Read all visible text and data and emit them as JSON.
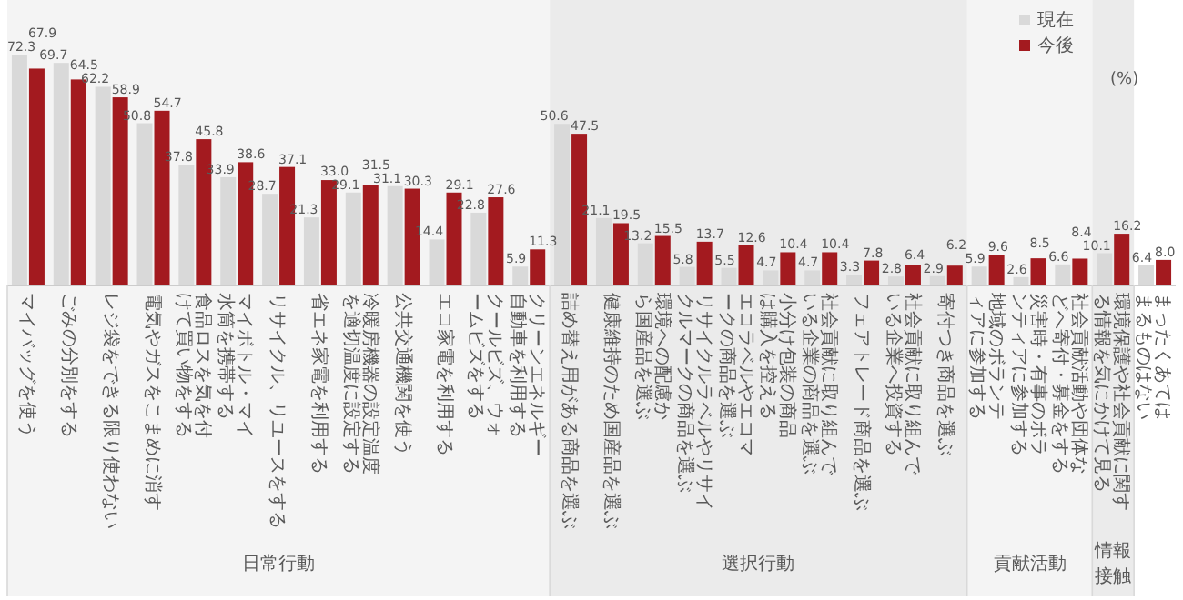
{
  "chart_data": {
    "type": "bar",
    "categories": [
      "マイバッグを使う",
      "ごみの分別をする",
      "レジ袋をできる限り使わない",
      "電気やガスをこまめに消す",
      "食品ロスを気を付けて買い物をする",
      "マイボトル・マイ水筒を携帯する",
      "リサイクル、リユースをする",
      "省エネ家電を利用する",
      "冷暖房機器の設定温度を適切温度に設定する",
      "公共交通機関を使う",
      "エコ家電を利用する",
      "クールビズ、ウォームビズをする",
      "クリーンエネルギー自動車を利用する",
      "詰め替え用がある商品を選ぶ",
      "健康維持のため国産品を選ぶ",
      "環境への配慮から国産品を選ぶ",
      "リサイクルラベルやリサイクルマークの商品を選ぶ",
      "エコラベルやエコマークの商品を選ぶ",
      "小分け包装の商品は購入を控える",
      "社会貢献に取り組んでいる企業の商品を選ぶ",
      "フェアトレード商品を選ぶ",
      "社会貢献に取り組んでいる企業へ投資する",
      "寄付つき商品を選ぶ",
      "地域のボランティアに参加する",
      "災害時・有事のボランティアに参加する",
      "社会貢献活動や団体などへ寄付・募金をする",
      "環境保護や社会貢献に関する情報を気にかけて見る",
      "まったくあてはまるものはない"
    ],
    "series": [
      {
        "name": "現在",
        "color": "#d9d9d9",
        "values": [
          72.3,
          69.7,
          62.2,
          50.8,
          37.8,
          33.9,
          28.7,
          21.3,
          29.1,
          31.1,
          14.4,
          22.8,
          5.9,
          50.6,
          21.1,
          13.2,
          5.8,
          5.5,
          4.7,
          4.7,
          3.3,
          2.8,
          2.9,
          5.9,
          2.6,
          6.6,
          10.1,
          6.4
        ],
        "value_labels": [
          "72.3",
          "69.7",
          "62.2",
          "50.8",
          "37.8",
          "33.9",
          "28.7",
          "21.3",
          "29.1",
          "31.1",
          "14.4",
          "22.8",
          "5.9",
          "50.6",
          "21.1",
          "13.2",
          "5.8",
          "5.5",
          "4.7",
          "4.7",
          "3.3",
          "2.8",
          "2.9",
          "5.9",
          "2.6",
          "6.6",
          "10.1",
          "6.4"
        ]
      },
      {
        "name": "今後",
        "color": "#a31a1f",
        "values": [
          67.9,
          64.5,
          58.9,
          54.7,
          45.8,
          38.6,
          37.1,
          33.0,
          31.5,
          30.3,
          29.1,
          27.6,
          11.3,
          47.5,
          19.5,
          15.5,
          13.7,
          12.6,
          10.4,
          10.4,
          7.8,
          6.4,
          6.2,
          9.6,
          8.5,
          8.4,
          16.2,
          8.0
        ],
        "value_labels": [
          "67.9",
          "64.5",
          "58.9",
          "54.7",
          "45.8",
          "38.6",
          "37.1",
          "33.0",
          "31.5",
          "30.3",
          "29.1",
          "27.6",
          "11.3",
          "47.5",
          "19.5",
          "15.5",
          "13.7",
          "12.6",
          "10.4",
          "10.4",
          "7.8",
          "6.4",
          "6.2",
          "9.6",
          "8.5",
          "8.4",
          "16.2",
          "8.0"
        ]
      }
    ],
    "legend": "top right",
    "bands": [
      {
        "axis": "x",
        "from": "マイバッグを使う",
        "to": "クリーンエネルギー自動車を利用する",
        "label": "日常行動",
        "color": "#f4f4f4"
      },
      {
        "axis": "x",
        "from": "詰め替え用がある商品を選ぶ",
        "to": "寄付つき商品を選ぶ",
        "label": "選択行動",
        "color": "#ebebeb"
      },
      {
        "axis": "x",
        "from": "地域のボランティアに参加する",
        "to": "社会貢献活動や団体などへ寄付・募金をする",
        "label": "貢献活動",
        "color": "#f4f4f4"
      },
      {
        "axis": "x",
        "from": "環境保護や社会貢献に関する情報を気にかけて見る",
        "to": "環境保護や社会貢献に関する情報を気にかけて見る",
        "label": "情報接触",
        "color": "#ebebeb"
      }
    ],
    "annotations": [
      "(%)"
    ]
  }
}
